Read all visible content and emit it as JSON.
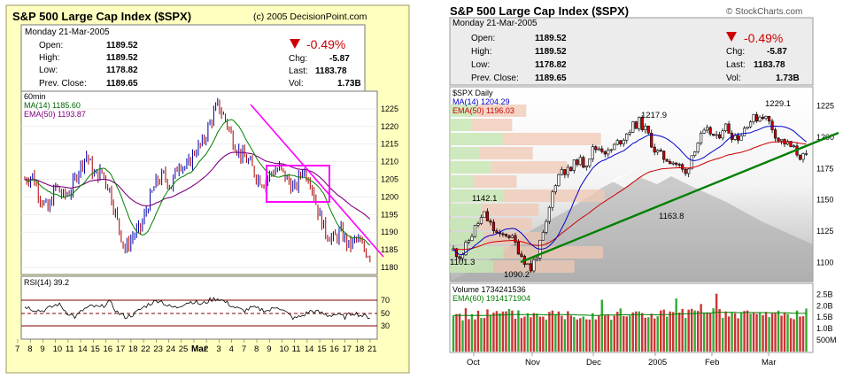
{
  "chart_data": [
    {
      "type": "candlestick",
      "title": "S&P 500 Large Cap Index ($SPX)",
      "copyright": "(c) 2005 DecisionPoint.com",
      "date": "Monday  21-Mar-2005",
      "quote": {
        "open_label": "Open:",
        "open": "1189.52",
        "high_label": "High:",
        "high": "1189.52",
        "low_label": "Low:",
        "low": "1178.82",
        "prev_label": "Prev. Close:",
        "prev": "1189.65",
        "chg_pct": "-0.49%",
        "chg_label": "Chg:",
        "chg": "-5.87",
        "last_label": "Last:",
        "last": "1183.78",
        "vol_label": "Vol:",
        "vol": "1.73B"
      },
      "interval": "60min",
      "ma_label": "MA(14) 1185.60",
      "ema_label": "EMA(50) 1193.87",
      "ylim": [
        1178,
        1230
      ],
      "yticks": [
        "1225",
        "1220",
        "1215",
        "1210",
        "1205",
        "1200",
        "1195",
        "1190",
        "1185",
        "1180"
      ],
      "xticks": [
        "7",
        "8",
        "9",
        "10",
        "11",
        "14",
        "15",
        "16",
        "17",
        "18",
        "22",
        "23",
        "24",
        "25",
        "Mar",
        "2",
        "3",
        "4",
        "7",
        "8",
        "9",
        "10",
        "11",
        "14",
        "15",
        "16",
        "17",
        "18",
        "21"
      ],
      "close_path": [
        [
          0,
          1205
        ],
        [
          4,
          1206
        ],
        [
          8,
          1200
        ],
        [
          12,
          1196
        ],
        [
          16,
          1203
        ],
        [
          20,
          1200
        ],
        [
          24,
          1202
        ],
        [
          28,
          1208
        ],
        [
          32,
          1212
        ],
        [
          36,
          1206
        ],
        [
          40,
          1207
        ],
        [
          44,
          1202
        ],
        [
          48,
          1193
        ],
        [
          52,
          1185
        ],
        [
          56,
          1189
        ],
        [
          60,
          1191
        ],
        [
          64,
          1198
        ],
        [
          68,
          1204
        ],
        [
          72,
          1206
        ],
        [
          76,
          1203
        ],
        [
          80,
          1210
        ],
        [
          84,
          1208
        ],
        [
          88,
          1213
        ],
        [
          92,
          1215
        ],
        [
          96,
          1221
        ],
        [
          100,
          1226
        ],
        [
          104,
          1222
        ],
        [
          108,
          1216
        ],
        [
          112,
          1212
        ],
        [
          116,
          1210
        ],
        [
          120,
          1206
        ],
        [
          124,
          1204
        ],
        [
          128,
          1207
        ],
        [
          132,
          1208
        ],
        [
          136,
          1205
        ],
        [
          140,
          1202
        ],
        [
          144,
          1208
        ],
        [
          148,
          1205
        ],
        [
          152,
          1196
        ],
        [
          156,
          1190
        ],
        [
          160,
          1188
        ],
        [
          164,
          1190
        ],
        [
          168,
          1186
        ],
        [
          172,
          1188
        ],
        [
          176,
          1185
        ],
        [
          180,
          1183
        ]
      ],
      "rsi_label": "RSI(14)  39.2",
      "rsi_ticks": [
        "70",
        "50",
        "30"
      ],
      "rsi": [
        52,
        48,
        46,
        50,
        55,
        44,
        38,
        48,
        52,
        50,
        58,
        44,
        38,
        42,
        50,
        56,
        60,
        52,
        50,
        56,
        58,
        54,
        60,
        62,
        56,
        50,
        46,
        50,
        48,
        46,
        52,
        44,
        36,
        40,
        46,
        44,
        40,
        42,
        38,
        44,
        40,
        38
      ]
    },
    {
      "type": "candlestick",
      "title": "S&P 500 Large Cap Index ($SPX)",
      "copyright": "© StockCharts.com",
      "date": "Monday  21-Mar-2005",
      "quote": {
        "open_label": "Open:",
        "open": "1189.52",
        "high_label": "High:",
        "high": "1189.52",
        "low_label": "Low:",
        "low": "1178.82",
        "prev_label": "Prev. Close:",
        "prev": "1189.65",
        "chg_pct": "-0.49%",
        "chg_label": "Chg:",
        "chg": "-5.87",
        "last_label": "Last:",
        "last": "1183.78",
        "vol_label": "Vol:",
        "vol": "1.73B"
      },
      "interval": "$SPX Daily",
      "ma_label": "MA(14) 1204.29",
      "ema_label": "EMA(50) 1196.03",
      "ylim": [
        1085,
        1240
      ],
      "yticks": [
        "1225",
        "1200",
        "1175",
        "1150",
        "1125",
        "1100"
      ],
      "xticks": [
        "Oct",
        "Nov",
        "Dec",
        "2005",
        "Feb",
        "Mar"
      ],
      "annotations": [
        "1217.9",
        "1229.1",
        "1142.1",
        "1163.8",
        "1101.3",
        "1090.2"
      ],
      "close_path": [
        [
          0,
          1110
        ],
        [
          5,
          1105
        ],
        [
          10,
          1118
        ],
        [
          15,
          1130
        ],
        [
          20,
          1138
        ],
        [
          25,
          1128
        ],
        [
          30,
          1120
        ],
        [
          35,
          1124
        ],
        [
          40,
          1115
        ],
        [
          45,
          1104
        ],
        [
          50,
          1095
        ],
        [
          55,
          1110
        ],
        [
          60,
          1130
        ],
        [
          65,
          1162
        ],
        [
          70,
          1175
        ],
        [
          75,
          1172
        ],
        [
          80,
          1182
        ],
        [
          85,
          1178
        ],
        [
          90,
          1190
        ],
        [
          95,
          1192
        ],
        [
          100,
          1187
        ],
        [
          105,
          1194
        ],
        [
          110,
          1200
        ],
        [
          115,
          1208
        ],
        [
          120,
          1212
        ],
        [
          125,
          1204
        ],
        [
          130,
          1190
        ],
        [
          135,
          1184
        ],
        [
          140,
          1182
        ],
        [
          145,
          1178
        ],
        [
          150,
          1170
        ],
        [
          155,
          1190
        ],
        [
          160,
          1200
        ],
        [
          165,
          1205
        ],
        [
          170,
          1198
        ],
        [
          175,
          1210
        ],
        [
          180,
          1202
        ],
        [
          185,
          1200
        ],
        [
          190,
          1212
        ],
        [
          195,
          1215
        ],
        [
          200,
          1218
        ],
        [
          205,
          1210
        ],
        [
          210,
          1198
        ],
        [
          215,
          1195
        ],
        [
          220,
          1190
        ],
        [
          225,
          1184
        ],
        [
          230,
          1183
        ]
      ],
      "volume_label": "Volume  1734241536",
      "vol_ema_label": "EMA(60)  1914171904",
      "vol_ticks": [
        "2.5B",
        "2.0B",
        "1.5B",
        "1.0B",
        "500M"
      ]
    }
  ]
}
